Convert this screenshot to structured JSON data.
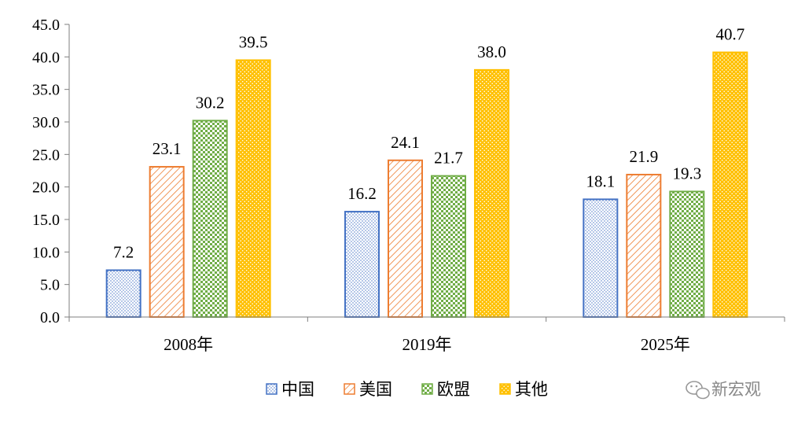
{
  "chart_data": {
    "type": "bar",
    "categories": [
      "2008年",
      "2019年",
      "2025年"
    ],
    "series": [
      {
        "name": "中国",
        "values": [
          7.2,
          16.2,
          18.1
        ],
        "color": "#4472C4",
        "pattern": "dots"
      },
      {
        "name": "美国",
        "values": [
          23.1,
          24.1,
          21.9
        ],
        "color": "#ED7D31",
        "pattern": "diagonal"
      },
      {
        "name": "欧盟",
        "values": [
          30.2,
          21.7,
          19.3
        ],
        "color": "#70AD47",
        "pattern": "check"
      },
      {
        "name": "其他",
        "values": [
          39.5,
          38.0,
          40.7
        ],
        "color": "#FFC000",
        "pattern": "dots"
      }
    ],
    "data_labels": [
      [
        "7.2",
        "16.2",
        "18.1"
      ],
      [
        "23.1",
        "24.1",
        "21.9"
      ],
      [
        "30.2",
        "21.7",
        "19.3"
      ],
      [
        "39.5",
        "38.0",
        "40.7"
      ]
    ],
    "y_ticks": [
      "0.0",
      "5.0",
      "10.0",
      "15.0",
      "20.0",
      "25.0",
      "30.0",
      "35.0",
      "40.0",
      "45.0"
    ],
    "ylim": [
      0,
      45
    ],
    "title": "",
    "xlabel": "",
    "ylabel": "",
    "grid": false,
    "legend_position": "bottom-center"
  },
  "watermark": {
    "text": "新宏观",
    "icon": "wechat-icon"
  }
}
